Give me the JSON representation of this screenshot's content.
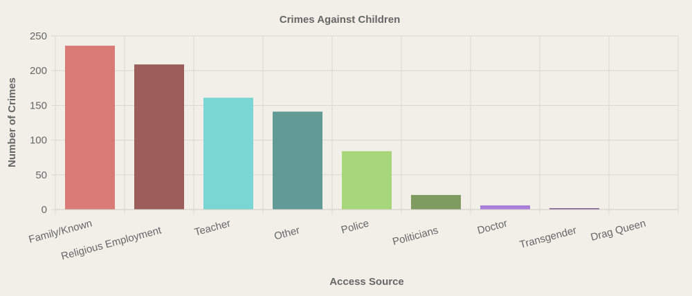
{
  "chart_data": {
    "type": "bar",
    "title": "Crimes Against Children",
    "xlabel": "Access Source",
    "ylabel": "Number of Crimes",
    "ylim": [
      0,
      250
    ],
    "yticks": [
      0,
      50,
      100,
      150,
      200,
      250
    ],
    "grid": true,
    "categories": [
      "Family/Known",
      "Religious Employment",
      "Teacher",
      "Other",
      "Police",
      "Politicians",
      "Doctor",
      "Transgender",
      "Drag Queen"
    ],
    "values": [
      236,
      209,
      161,
      141,
      84,
      21,
      6,
      2,
      0
    ],
    "colors": [
      "#d97a76",
      "#9a5d5a",
      "#79d6d2",
      "#629a96",
      "#a7d77a",
      "#7e9c5f",
      "#a97ed9",
      "#7f5d9c",
      "#d9a676"
    ]
  }
}
